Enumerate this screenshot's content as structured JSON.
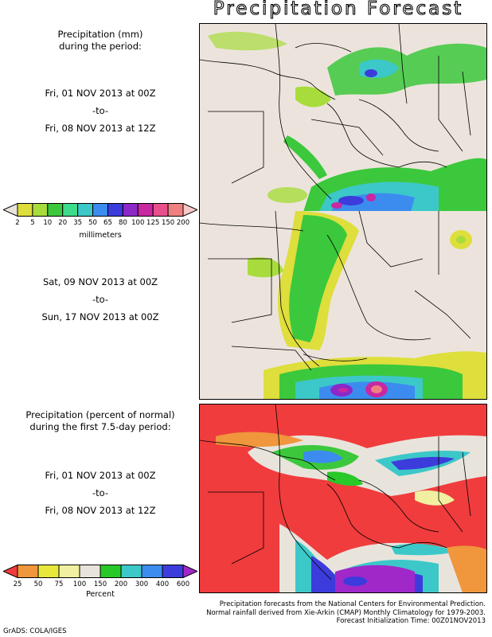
{
  "title": "Precipitation Forecast",
  "panel1": {
    "label_line1": "Precipitation (mm)",
    "label_line2": "during the period:",
    "start": "Fri, 01 NOV 2013 at 00Z",
    "to": "-to-",
    "end": "Fri, 08 NOV 2013 at 12Z"
  },
  "panel2": {
    "start": "Sat, 09 NOV 2013 at 00Z",
    "to": "-to-",
    "end": "Sun, 17 NOV 2013 at 00Z"
  },
  "panel3": {
    "label_line1": "Precipitation (percent of normal)",
    "label_line2": "during the first 7.5-day period:",
    "start": "Fri, 01 NOV 2013 at 00Z",
    "to": "-to-",
    "end": "Fri, 08 NOV 2013 at 12Z"
  },
  "legend_mm": {
    "unit": "millimeters",
    "ticks": [
      "2",
      "5",
      "10",
      "20",
      "35",
      "50",
      "65",
      "80",
      "100",
      "125",
      "150",
      "200"
    ],
    "colors": [
      "#e8e4dc",
      "#dede3c",
      "#a8dc3c",
      "#3cc83c",
      "#3cdc8c",
      "#3cc8c8",
      "#3c8cf0",
      "#3c3cdc",
      "#8c28c8",
      "#c828a0",
      "#e8508c",
      "#f08080",
      "#f8c8c8"
    ]
  },
  "legend_pct": {
    "unit": "Percent",
    "ticks": [
      "25",
      "50",
      "75",
      "100",
      "150",
      "200",
      "300",
      "400",
      "600"
    ],
    "colors": [
      "#f03c3c",
      "#f0963c",
      "#e8e83c",
      "#f0f0a0",
      "#e8e4dc",
      "#28c828",
      "#3cc8c8",
      "#3c8cf0",
      "#3c3cdc",
      "#a028c8"
    ]
  },
  "footer": {
    "line1": "Precipitation forecasts from the National Centers for Environmental Prediction.",
    "line2": "Normal rainfall derived from Xie-Arkin (CMAP) Monthly Climatology for 1979-2003.",
    "line3": "Forecast Initialization Time: 00Z01NOV2013"
  },
  "credit": "GrADS: COLA/IGES"
}
